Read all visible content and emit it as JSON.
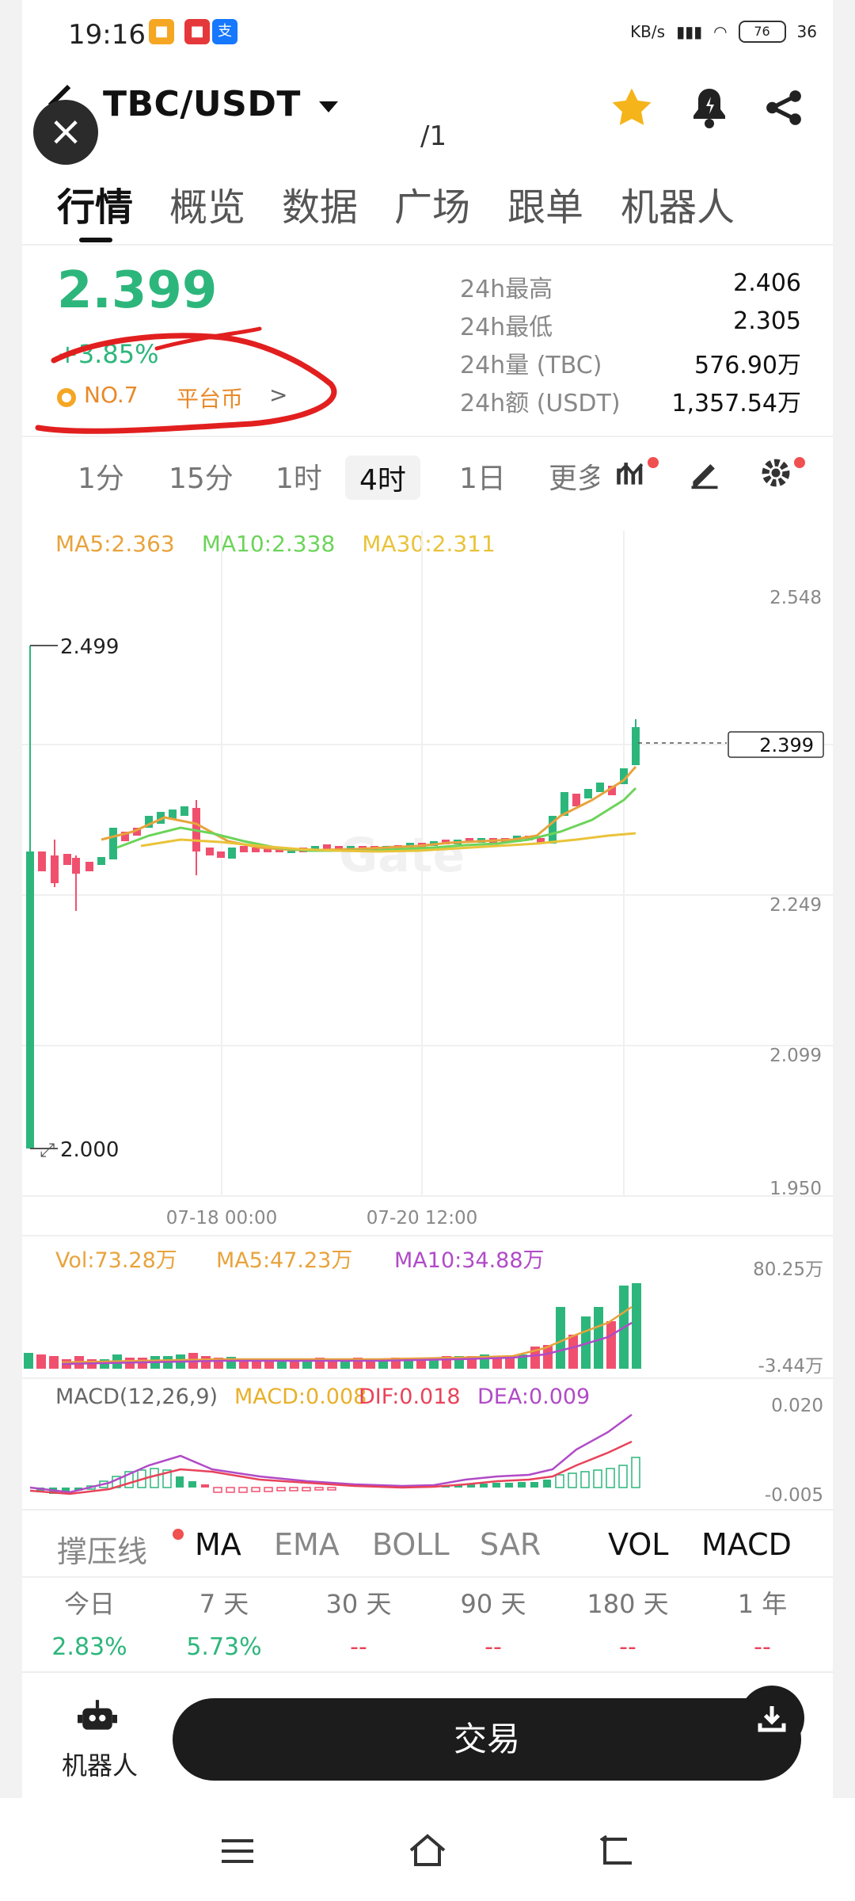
{
  "status_bar": {
    "time": "19:16",
    "network_text": "KB/s",
    "battery": "76",
    "signal_label": "36"
  },
  "header": {
    "pair": "TBC/USDT",
    "page_indicator": "/1"
  },
  "tabs": [
    "行情",
    "概览",
    "数据",
    "广场",
    "跟单",
    "机器人"
  ],
  "price": {
    "last": "2.399",
    "change": "+3.85%",
    "rank": "NO.7",
    "tag": "平台币",
    "tag_chevron": ">"
  },
  "stats": [
    {
      "label": "24h最高",
      "value": "2.406"
    },
    {
      "label": "24h最低",
      "value": "2.305"
    },
    {
      "label": "24h量 (TBC)",
      "value": "576.90万"
    },
    {
      "label": "24h额 (USDT)",
      "value": "1,357.54万"
    }
  ],
  "timeframes": [
    "1分",
    "15分",
    "1时",
    "4时",
    "1日",
    "更多"
  ],
  "active_timeframe": "4时",
  "ma_legend": {
    "ma5": "MA5:2.363",
    "ma10": "MA10:2.338",
    "ma30": "MA30:2.311",
    "ma5_color": "#e8a33c",
    "ma10_color": "#6cd45a",
    "ma30_color": "#e9c33a"
  },
  "chart": {
    "price_axis": [
      "2.548",
      "2.249",
      "2.099",
      "1.950"
    ],
    "current_price_tag": "2.399",
    "high_marker": "2.499",
    "low_marker": "2.000",
    "time_labels": [
      "07-18 00:00",
      "07-20 12:00"
    ],
    "watermark": "Gate"
  },
  "volume": {
    "vol": "Vol:73.28万",
    "ma5": "MA5:47.23万",
    "ma10": "MA10:34.88万",
    "axis_top": "80.25万",
    "axis_bottom": "-3.44万"
  },
  "macd": {
    "label": "MACD(12,26,9)",
    "macd": "MACD:0.008",
    "dif": "DIF:0.018",
    "dea": "DEA:0.009",
    "axis_top": "0.020",
    "axis_bottom": "-0.005"
  },
  "indicator_tabs": [
    "撑压线",
    "MA",
    "EMA",
    "BOLL",
    "SAR",
    "VOL",
    "MACD"
  ],
  "performance": [
    {
      "label": "今日",
      "value": "2.83%"
    },
    {
      "label": "7 天",
      "value": "5.73%"
    },
    {
      "label": "30 天",
      "value": "--"
    },
    {
      "label": "90 天",
      "value": "--"
    },
    {
      "label": "180 天",
      "value": "--"
    },
    {
      "label": "1 年",
      "value": "--"
    }
  ],
  "bottom": {
    "robot_label": "机器人",
    "trade_label": "交易"
  },
  "colors": {
    "up": "#2db67c",
    "down": "#f0506e",
    "accent_orange": "#e8892a"
  }
}
